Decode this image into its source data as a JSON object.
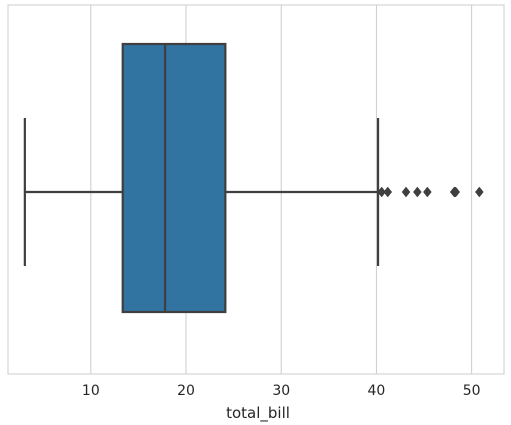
{
  "chart_data": {
    "type": "box",
    "orientation": "horizontal",
    "xlabel": "total_bill",
    "ylabel": "",
    "xlim": [
      1.3,
      53.4
    ],
    "xticks": [
      10,
      20,
      30,
      40,
      50
    ],
    "grid": true,
    "series": [
      {
        "whisker_low": 3.07,
        "q1": 13.35,
        "median": 17.8,
        "q3": 24.13,
        "whisker_high": 40.17,
        "outliers": [
          40.55,
          41.19,
          43.11,
          44.3,
          45.35,
          48.17,
          48.27,
          48.33,
          50.81
        ]
      }
    ],
    "colors": {
      "box_fill": "#3274a1",
      "line": "#3f3f3f",
      "grid": "#cccccc",
      "frame": "#cccccc"
    }
  }
}
